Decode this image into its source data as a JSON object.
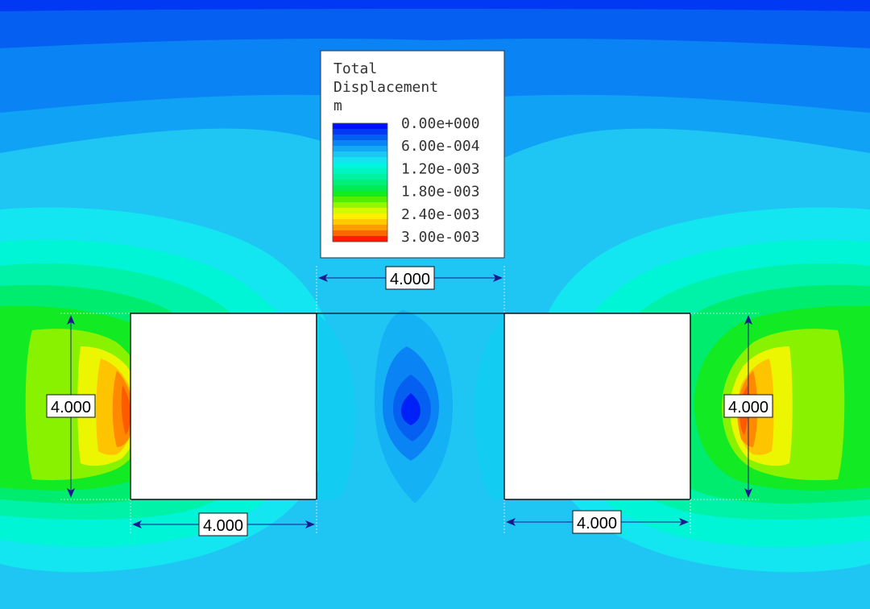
{
  "legend": {
    "title_line1": "Total",
    "title_line2": "Displacement",
    "unit": "m",
    "tick_labels": [
      "0.00e+000",
      "6.00e-004",
      "1.20e-003",
      "1.80e-003",
      "2.40e-003",
      "3.00e-003"
    ],
    "color_bands": [
      "#0010ff",
      "#0038f4",
      "#005ef2",
      "#0a84f4",
      "#12a8f4",
      "#1cc6f4",
      "#14e4f0",
      "#00f4e0",
      "#00f6c0",
      "#00f2a0",
      "#00ee7a",
      "#00ec52",
      "#10ec20",
      "#50f000",
      "#98f400",
      "#d8f800",
      "#fff000",
      "#ffca00",
      "#ff9c00",
      "#ff6600",
      "#ff1a00"
    ]
  },
  "dimensions": {
    "top_gap": "4.000",
    "left_height": "4.000",
    "left_width": "4.000",
    "right_height": "4.000",
    "right_width": "4.000"
  }
}
